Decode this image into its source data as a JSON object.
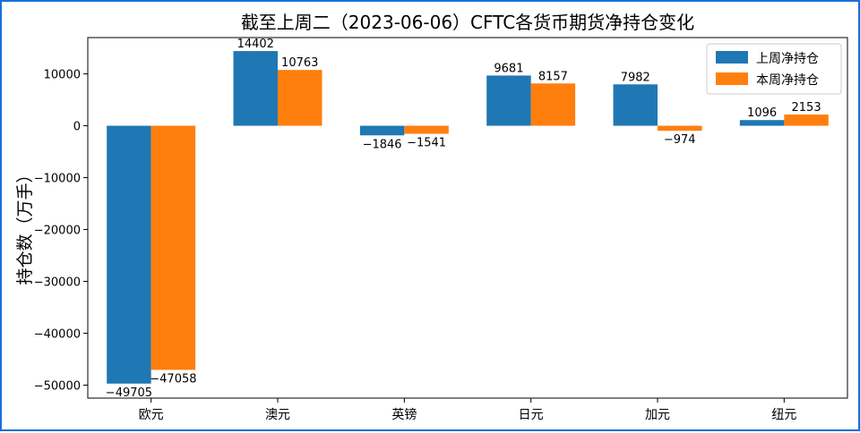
{
  "chart_data": {
    "type": "bar",
    "title": "截至上周二（2023-06-06）CFTC各货币期货净持仓变化",
    "xlabel": "",
    "ylabel": "持仓数（万手）",
    "categories": [
      "欧元",
      "澳元",
      "英镑",
      "日元",
      "加元",
      "纽元"
    ],
    "series": [
      {
        "name": "上周净持仓",
        "color": "#1f77b4",
        "values": [
          -49705,
          14402,
          -1846,
          9681,
          7982,
          1096
        ]
      },
      {
        "name": "本周净持仓",
        "color": "#ff7f0e",
        "values": [
          -47058,
          10763,
          -1541,
          8157,
          -974,
          2153
        ]
      }
    ],
    "ylim": [
      -52500,
      17000
    ],
    "yticks": [
      -50000,
      -40000,
      -30000,
      -20000,
      -10000,
      0,
      10000
    ],
    "grid": false,
    "legend_position": "top-right"
  }
}
